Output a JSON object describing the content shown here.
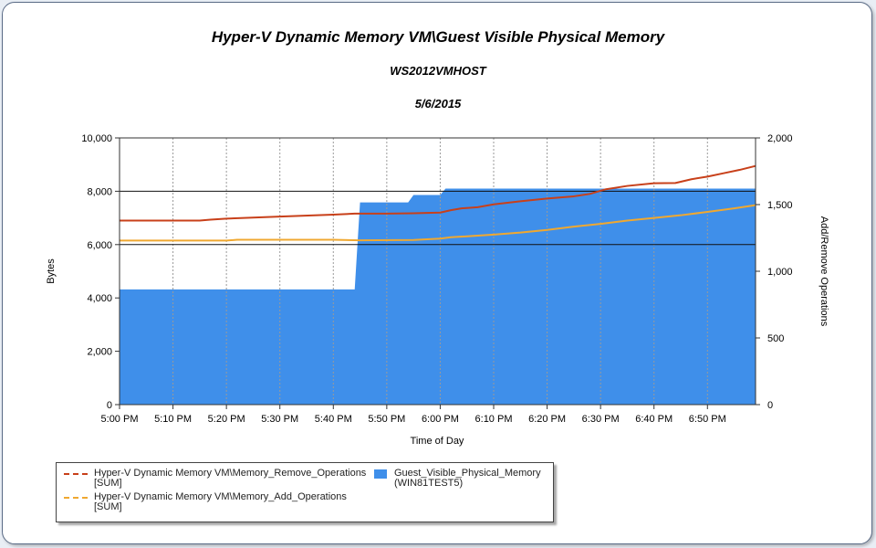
{
  "chart_data": {
    "type": "line",
    "title": "Hyper-V Dynamic Memory VM\\Guest Visible Physical Memory",
    "subtitle_host": "WS2012VMHOST",
    "subtitle_date": "5/6/2015",
    "xlabel": "Time of Day",
    "ylabel_left": "Bytes",
    "ylabel_right": "Add/Remove Operations",
    "x_ticks": [
      "5:00 PM",
      "5:10 PM",
      "5:20 PM",
      "5:30 PM",
      "5:40 PM",
      "5:50 PM",
      "6:00 PM",
      "6:10 PM",
      "6:20 PM",
      "6:30 PM",
      "6:40 PM",
      "6:50 PM"
    ],
    "xlim_minutes": [
      0,
      119
    ],
    "ylim_left": [
      0,
      10000
    ],
    "yticks_left": [
      "0",
      "2,000",
      "4,000",
      "6,000",
      "8,000",
      "10,000"
    ],
    "ylim_right": [
      0,
      2000
    ],
    "yticks_right": [
      "0",
      "500",
      "1,000",
      "1,500",
      "2,000"
    ],
    "grid": "vertical dashed, horizontal solid at 6,000 / 8,000",
    "legend_position": "bottom-left",
    "series": [
      {
        "name": "Hyper-V Dynamic Memory VM\\Memory_Remove_Operations",
        "name_suffix": "[SUM]",
        "axis": "right",
        "style": "line",
        "color": "#c8401a",
        "x": [
          0,
          10,
          15,
          17,
          20,
          30,
          40,
          44,
          50,
          55,
          60,
          62,
          64,
          67,
          70,
          75,
          80,
          85,
          88,
          91,
          95,
          100,
          104,
          107,
          110,
          113,
          116,
          119
        ],
        "y": [
          1380,
          1380,
          1380,
          1387,
          1395,
          1410,
          1425,
          1432,
          1432,
          1435,
          1440,
          1458,
          1472,
          1480,
          1502,
          1525,
          1545,
          1562,
          1580,
          1615,
          1640,
          1660,
          1662,
          1690,
          1710,
          1735,
          1760,
          1790
        ]
      },
      {
        "name": "Hyper-V Dynamic Memory VM\\Memory_Add_Operations",
        "name_suffix": "[SUM]",
        "axis": "right",
        "style": "line",
        "color": "#f0a830",
        "x": [
          0,
          10,
          20,
          22,
          30,
          40,
          45,
          55,
          60,
          62,
          65,
          70,
          75,
          80,
          85,
          90,
          95,
          100,
          105,
          110,
          115,
          119
        ],
        "y": [
          1230,
          1230,
          1230,
          1236,
          1236,
          1236,
          1232,
          1235,
          1245,
          1255,
          1262,
          1275,
          1290,
          1310,
          1335,
          1355,
          1380,
          1400,
          1420,
          1445,
          1472,
          1496
        ]
      },
      {
        "name": "Guest_Visible_Physical_Memory",
        "name_suffix": "(WIN81TEST5)",
        "axis": "left",
        "style": "area",
        "color": "#3f8fea",
        "x": [
          0,
          44,
          45,
          54,
          55,
          60,
          61,
          119
        ],
        "y": [
          4320,
          4320,
          7580,
          7580,
          7860,
          7860,
          8100,
          8100
        ]
      }
    ]
  }
}
